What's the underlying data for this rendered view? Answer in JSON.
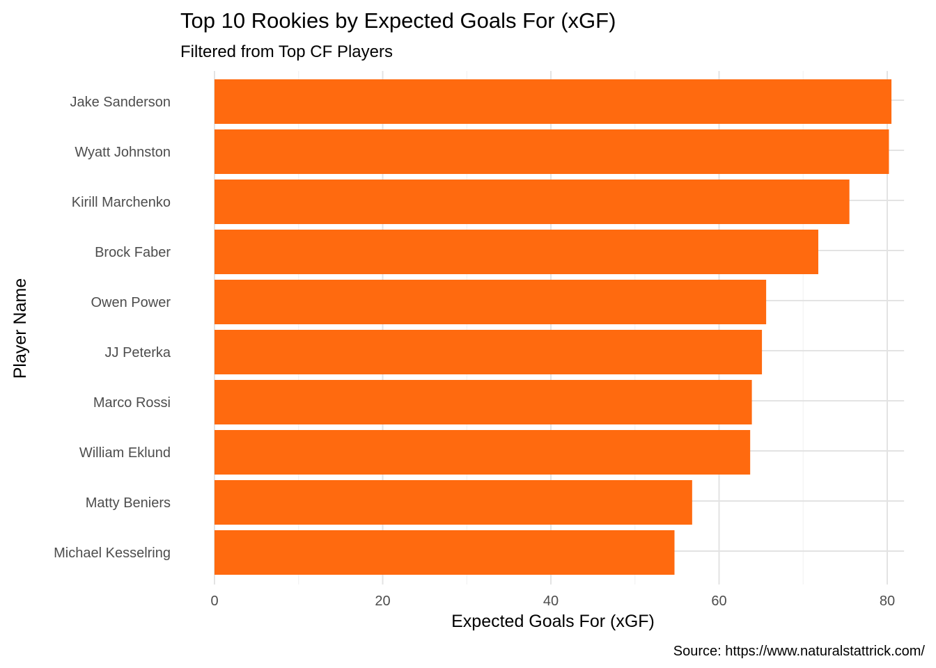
{
  "chart_data": {
    "type": "bar",
    "orientation": "horizontal",
    "title": "Top 10 Rookies by Expected Goals For (xGF)",
    "subtitle": "Filtered from Top CF Players",
    "xlabel": "Expected Goals For (xGF)",
    "ylabel": "Player Name",
    "caption": "Source: https://www.naturalstattrick.com/",
    "categories": [
      "Jake Sanderson",
      "Wyatt Johnston",
      "Kirill Marchenko",
      "Brock Faber",
      "Owen Power",
      "JJ Peterka",
      "Marco Rossi",
      "William Eklund",
      "Matty Beniers",
      "Michael Kesselring"
    ],
    "values": [
      80.5,
      80.2,
      75.5,
      71.8,
      65.6,
      65.1,
      63.9,
      63.7,
      56.8,
      54.7
    ],
    "xlim": [
      0,
      82
    ],
    "xticks": [
      0,
      20,
      40,
      60,
      80
    ],
    "bar_color": "#FF6A0F",
    "grid": true,
    "legend": "none"
  }
}
